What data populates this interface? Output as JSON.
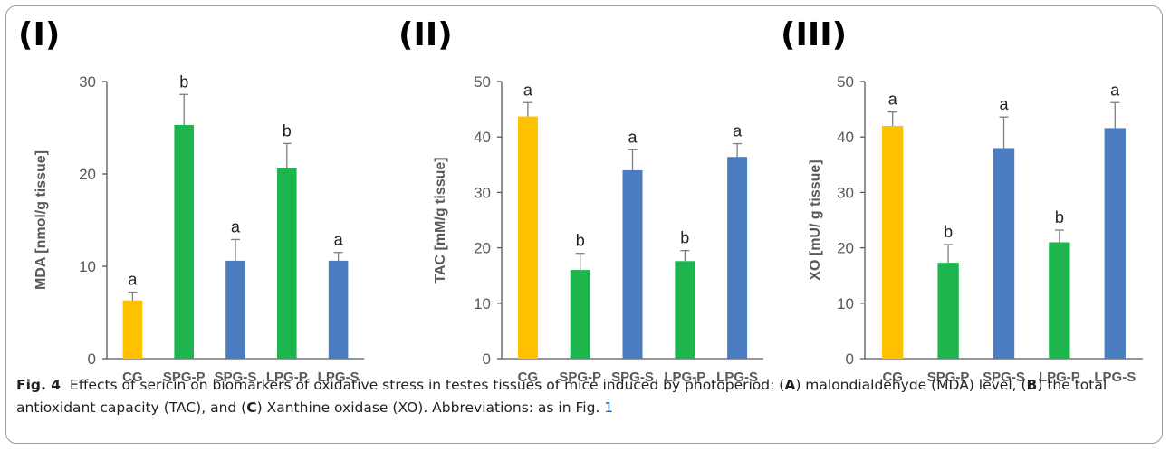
{
  "colors": {
    "CG": "#FFC000",
    "P": "#1EB54E",
    "S": "#4A7DC0",
    "axis": "#595959",
    "error": "#7f7f7f"
  },
  "caption": {
    "label": "Fig. 4",
    "part1": "Effects of sericin on biomarkers of oxidative stress in testes tissues of mice induced by photoperiod: (",
    "a": "A",
    "part2": ") malondialdehyde (MDA) level, (",
    "b": "B",
    "part3": ") the total antioxidant capacity (TAC), and (",
    "c": "C",
    "part4": ") Xanthine oxidase (XO). Abbreviations: as in Fig. ",
    "ref": "1"
  },
  "chart_data": [
    {
      "type": "bar",
      "panel_label": "(I)",
      "ylabel": "MDA  [nmol/g tissue]",
      "ylim": [
        0,
        30
      ],
      "yticks": [
        0,
        10,
        20,
        30
      ],
      "categories": [
        "CG",
        "SPG-P",
        "SPG-S",
        "LPG-P",
        "LPG-S"
      ],
      "values": [
        6.3,
        25.3,
        10.6,
        20.6,
        10.6
      ],
      "errors": [
        0.9,
        3.3,
        2.3,
        2.7,
        0.9
      ],
      "sig_letters": [
        "a",
        "b",
        "a",
        "b",
        "a"
      ],
      "bar_colors": [
        "#FFC000",
        "#1EB54E",
        "#4A7DC0",
        "#1EB54E",
        "#4A7DC0"
      ]
    },
    {
      "type": "bar",
      "panel_label": "(II)",
      "ylabel": "TAC  [mM/g tissue]",
      "ylim": [
        0,
        50
      ],
      "yticks": [
        0,
        10,
        20,
        30,
        40,
        50
      ],
      "categories": [
        "CG",
        "SPG-P",
        "SPG-S",
        "LPG-P",
        "LPG-S"
      ],
      "values": [
        43.7,
        16.0,
        34.0,
        17.6,
        36.4
      ],
      "errors": [
        2.5,
        3.0,
        3.7,
        1.9,
        2.4
      ],
      "sig_letters": [
        "a",
        "b",
        "a",
        "b",
        "a"
      ],
      "bar_colors": [
        "#FFC000",
        "#1EB54E",
        "#4A7DC0",
        "#1EB54E",
        "#4A7DC0"
      ]
    },
    {
      "type": "bar",
      "panel_label": "(III)",
      "ylabel": "XO  [mU/ g tissue]",
      "ylim": [
        0,
        50
      ],
      "yticks": [
        0,
        10,
        20,
        30,
        40,
        50
      ],
      "categories": [
        "CG",
        "SPG-P",
        "SPG-S",
        "LPG-P",
        "LPG-S"
      ],
      "values": [
        42.0,
        17.3,
        38.0,
        21.0,
        41.6
      ],
      "errors": [
        2.5,
        3.3,
        5.6,
        2.2,
        4.6
      ],
      "sig_letters": [
        "a",
        "b",
        "a",
        "b",
        "a"
      ],
      "bar_colors": [
        "#FFC000",
        "#1EB54E",
        "#4A7DC0",
        "#1EB54E",
        "#4A7DC0"
      ]
    }
  ]
}
